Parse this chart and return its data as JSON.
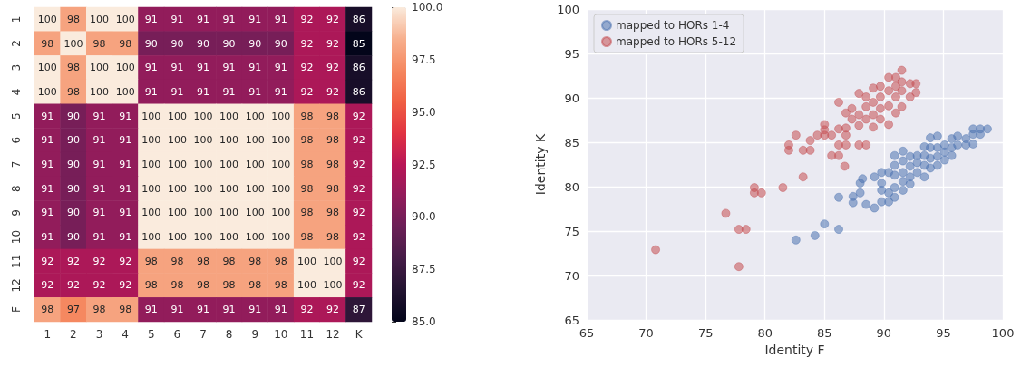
{
  "chart_data": [
    {
      "type": "heatmap",
      "categories": [
        "1",
        "2",
        "3",
        "4",
        "5",
        "6",
        "7",
        "8",
        "9",
        "10",
        "11",
        "12",
        "K"
      ],
      "y_categories": [
        "1",
        "2",
        "3",
        "4",
        "5",
        "6",
        "7",
        "8",
        "9",
        "10",
        "11",
        "12",
        "F"
      ],
      "cells": [
        [
          100,
          98,
          100,
          100,
          91,
          91,
          91,
          91,
          91,
          91,
          92,
          92,
          86
        ],
        [
          98,
          100,
          98,
          98,
          90,
          90,
          90,
          90,
          90,
          90,
          92,
          92,
          85
        ],
        [
          100,
          98,
          100,
          100,
          91,
          91,
          91,
          91,
          91,
          91,
          92,
          92,
          86
        ],
        [
          100,
          98,
          100,
          100,
          91,
          91,
          91,
          91,
          91,
          91,
          92,
          92,
          86
        ],
        [
          91,
          90,
          91,
          91,
          100,
          100,
          100,
          100,
          100,
          100,
          98,
          98,
          92
        ],
        [
          91,
          90,
          91,
          91,
          100,
          100,
          100,
          100,
          100,
          100,
          98,
          98,
          92
        ],
        [
          91,
          90,
          91,
          91,
          100,
          100,
          100,
          100,
          100,
          100,
          98,
          98,
          92
        ],
        [
          91,
          90,
          91,
          91,
          100,
          100,
          100,
          100,
          100,
          100,
          98,
          98,
          92
        ],
        [
          91,
          90,
          91,
          91,
          100,
          100,
          100,
          100,
          100,
          100,
          98,
          98,
          92
        ],
        [
          91,
          90,
          91,
          91,
          100,
          100,
          100,
          100,
          100,
          100,
          98,
          98,
          92
        ],
        [
          92,
          92,
          92,
          92,
          98,
          98,
          98,
          98,
          98,
          98,
          100,
          100,
          92
        ],
        [
          92,
          92,
          92,
          92,
          98,
          98,
          98,
          98,
          98,
          98,
          100,
          100,
          92
        ],
        [
          98,
          97,
          98,
          98,
          91,
          91,
          91,
          91,
          91,
          91,
          92,
          92,
          87
        ]
      ],
      "clim": [
        85,
        100
      ],
      "cticks": [
        {
          "value": 85,
          "label": "85.0"
        },
        {
          "value": 87.5,
          "label": "87.5"
        },
        {
          "value": 90,
          "label": "90.0"
        },
        {
          "value": 92.5,
          "label": "92.5"
        },
        {
          "value": 95,
          "label": "95.0"
        },
        {
          "value": 97.5,
          "label": "97.5"
        },
        {
          "value": 100,
          "label": "100.0"
        }
      ],
      "data_labels": true
    },
    {
      "type": "scatter",
      "xlabel": "Identity F",
      "ylabel": "Identity K",
      "xlim": [
        65,
        100
      ],
      "ylim": [
        65,
        100
      ],
      "xticks": [
        65,
        70,
        75,
        80,
        85,
        90,
        95,
        100
      ],
      "yticks": [
        65,
        70,
        75,
        80,
        85,
        90,
        95,
        100
      ],
      "grid": true,
      "legend": "top left",
      "marker": "circle",
      "series": [
        {
          "name": "mapped to HORs 1-4",
          "color": "#4c72b0",
          "x": [
            82.6,
            84.2,
            85.0,
            86.2,
            86.2,
            87.4,
            87.4,
            88.0,
            88.0,
            88.2,
            88.5,
            89.2,
            89.2,
            89.8,
            89.8,
            89.8,
            89.8,
            90.4,
            90.4,
            90.4,
            90.9,
            90.9,
            90.9,
            90.9,
            90.9,
            91.6,
            91.6,
            91.6,
            91.6,
            91.6,
            92.2,
            92.2,
            92.2,
            92.2,
            92.8,
            92.8,
            92.8,
            93.4,
            93.4,
            93.4,
            93.4,
            93.9,
            93.9,
            93.9,
            93.9,
            94.5,
            94.5,
            94.5,
            94.5,
            95.1,
            95.1,
            95.1,
            95.7,
            95.7,
            95.7,
            96.2,
            96.2,
            96.9,
            96.9,
            97.5,
            97.5,
            97.5,
            98.1,
            98.1,
            98.7
          ],
          "values": [
            74.0,
            74.5,
            75.8,
            75.2,
            78.8,
            78.9,
            78.2,
            80.4,
            79.3,
            80.9,
            78.0,
            81.1,
            77.6,
            81.6,
            80.4,
            79.6,
            78.3,
            81.6,
            79.3,
            78.3,
            83.5,
            82.4,
            81.3,
            79.9,
            78.8,
            84.0,
            82.9,
            81.6,
            80.6,
            79.6,
            83.4,
            82.3,
            81.1,
            80.3,
            83.5,
            82.7,
            81.6,
            84.5,
            83.5,
            82.4,
            81.1,
            85.5,
            84.4,
            83.2,
            82.1,
            85.7,
            84.4,
            83.4,
            82.4,
            84.7,
            83.9,
            83.0,
            85.4,
            84.4,
            83.5,
            85.7,
            84.7,
            85.4,
            84.7,
            86.5,
            85.9,
            84.8,
            86.5,
            85.9,
            86.5
          ]
        },
        {
          "name": "mapped to HORs 5-12",
          "color": "#c44e52",
          "x": [
            70.8,
            76.7,
            77.8,
            78.4,
            77.8,
            79.1,
            79.1,
            79.7,
            81.5,
            82.6,
            82.0,
            82.0,
            83.2,
            83.2,
            83.8,
            83.8,
            84.4,
            85.0,
            85.0,
            85.0,
            85.6,
            86.2,
            86.2,
            86.2,
            85.6,
            86.2,
            86.7,
            86.8,
            86.8,
            86.8,
            86.8,
            87.3,
            87.3,
            87.9,
            87.9,
            87.9,
            87.9,
            88.5,
            88.5,
            88.5,
            88.5,
            89.1,
            89.1,
            89.1,
            89.1,
            89.7,
            89.7,
            89.7,
            89.7,
            90.4,
            90.4,
            90.4,
            90.4,
            91.0,
            91.0,
            91.0,
            91.0,
            91.5,
            91.5,
            91.5,
            91.5,
            92.2,
            92.2,
            92.7,
            92.7
          ],
          "values": [
            72.9,
            77.0,
            75.2,
            75.2,
            71.0,
            79.9,
            79.3,
            79.3,
            79.9,
            85.8,
            84.7,
            84.1,
            84.1,
            81.1,
            84.1,
            85.2,
            85.8,
            87.0,
            86.4,
            85.8,
            85.8,
            89.5,
            86.5,
            84.7,
            83.5,
            83.5,
            82.3,
            88.3,
            86.6,
            85.8,
            84.7,
            88.8,
            87.6,
            90.5,
            88.1,
            86.9,
            84.7,
            84.7,
            90.1,
            89.0,
            87.6,
            91.1,
            89.5,
            88.1,
            86.7,
            91.3,
            90.1,
            88.8,
            87.6,
            92.3,
            90.8,
            89.1,
            87.0,
            92.3,
            91.3,
            90.1,
            88.3,
            93.1,
            91.8,
            90.8,
            89.0,
            91.6,
            90.1,
            91.6,
            90.6
          ]
        }
      ]
    }
  ]
}
